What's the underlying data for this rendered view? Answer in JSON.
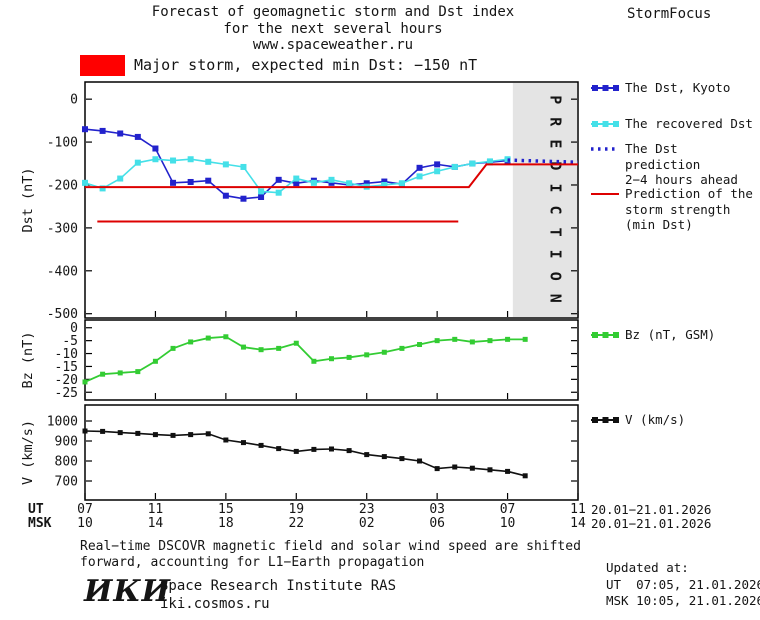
{
  "header": {
    "title_line1": "Forecast of geomagnetic storm and Dst index",
    "title_line2": "for the next several hours",
    "title_line3": "www.spaceweather.ru",
    "brand": "StormFocus"
  },
  "warning": {
    "box_color": "#ff0000",
    "label": "Major storm, expected min Dst: −150 nT"
  },
  "legend": {
    "dst_kyoto": "The Dst, Kyoto",
    "recovered": "The recovered Dst",
    "prediction_line1": "The Dst prediction",
    "prediction_line2": "2−4 hours ahead",
    "strength_line1": "Prediction of the",
    "strength_line2": "storm strength",
    "strength_line3": "(min Dst)",
    "bz": "Bz (nT, GSM)",
    "v": "V (km/s)"
  },
  "axes": {
    "dst_label": "Dst (nT)",
    "bz_label": "Bz (nT)",
    "v_label": "V (km/s)",
    "ut_label": "UT",
    "msk_label": "MSK",
    "ut_ticks": [
      "07",
      "11",
      "15",
      "19",
      "23",
      "03",
      "07",
      "11"
    ],
    "msk_ticks": [
      "10",
      "14",
      "18",
      "22",
      "02",
      "06",
      "10",
      "14"
    ],
    "ut_date_range": "20.01−21.01.2026",
    "msk_date_range": "20.01−21.01.2026"
  },
  "footer": {
    "note_line1": "Real−time DSCOVR magnetic field and solar wind speed are shifted",
    "note_line2": "forward, accounting for L1−Earth propagation",
    "logo": "ИКИ",
    "institute": "Space Research Institute RAS",
    "site": "iki.cosmos.ru",
    "updated_title": "Updated at:",
    "updated_ut": "UT  07:05, 21.01.2026",
    "updated_msk": "MSK 10:05, 21.01.2026"
  },
  "chart_data": [
    {
      "type": "line",
      "ylabel": "Dst (nT)",
      "xlim": [
        7,
        35
      ],
      "ylim": [
        -510,
        40
      ],
      "yticks": [
        0,
        -100,
        -200,
        -300,
        -400,
        -500
      ],
      "xtick_hours": [
        7,
        11,
        15,
        19,
        23,
        27,
        31,
        35
      ],
      "prediction_band": {
        "start_hour": 31.3,
        "label": "PREDICTION",
        "fill": "#e4e4e4",
        "text_color": "#a6a6a6"
      },
      "series": [
        {
          "name": "The Dst, Kyoto",
          "color": "#2222cc",
          "marker": "square",
          "marker_size": 6,
          "width": 1.6,
          "x": [
            7,
            8,
            9,
            10,
            11,
            12,
            13,
            14,
            15,
            16,
            17,
            18,
            19,
            20,
            21,
            22,
            23,
            24,
            25,
            26,
            27,
            28,
            29,
            30,
            31
          ],
          "y": [
            -70,
            -74,
            -80,
            -88,
            -115,
            -195,
            -193,
            -190,
            -225,
            -232,
            -228,
            -188,
            -196,
            -190,
            -195,
            -200,
            -196,
            -192,
            -198,
            -160,
            -152,
            -158,
            -150,
            -147,
            -143
          ]
        },
        {
          "name": "The recovered Dst",
          "color": "#45e0e8",
          "marker": "square",
          "marker_size": 6,
          "width": 1.6,
          "x": [
            7,
            8,
            9,
            10,
            11,
            12,
            13,
            14,
            15,
            16,
            17,
            18,
            19,
            20,
            21,
            22,
            23,
            24,
            25,
            26,
            27,
            28,
            29,
            30,
            31
          ],
          "y": [
            -195,
            -208,
            -185,
            -148,
            -140,
            -143,
            -140,
            -146,
            -152,
            -158,
            -215,
            -218,
            -185,
            -195,
            -188,
            -196,
            -204,
            -200,
            -196,
            -180,
            -168,
            -158,
            -150,
            -145,
            -140
          ]
        },
        {
          "name": "The Dst prediction 2−4 hours ahead",
          "color": "#2222cc",
          "dash": "2.5 4.5",
          "width": 3.5,
          "x": [
            31,
            31.8,
            32.6,
            33.4,
            34.2,
            35
          ],
          "y": [
            -142,
            -143,
            -144,
            -145,
            -146,
            -147
          ]
        },
        {
          "name": "Prediction of the storm strength (min Dst)",
          "color": "#dd0000",
          "width": 2,
          "x": [
            7,
            28.8,
            29.8,
            35
          ],
          "y": [
            -205,
            -205,
            -152,
            -152
          ]
        },
        {
          "name": "Prediction of the storm strength (earlier)",
          "color": "#dd0000",
          "width": 2,
          "x": [
            7.7,
            28.2
          ],
          "y": [
            -285,
            -285
          ]
        }
      ]
    },
    {
      "type": "line",
      "ylabel": "Bz (nT)",
      "xlim": [
        7,
        35
      ],
      "ylim": [
        -28,
        3
      ],
      "yticks": [
        0,
        -5,
        -10,
        -15,
        -20,
        -25
      ],
      "series": [
        {
          "name": "Bz (nT, GSM)",
          "color": "#33cc33",
          "marker": "square",
          "marker_size": 5,
          "width": 1.8,
          "x": [
            7,
            8,
            9,
            10,
            11,
            12,
            13,
            14,
            15,
            16,
            17,
            18,
            19,
            20,
            21,
            22,
            23,
            24,
            25,
            26,
            27,
            28,
            29,
            30,
            31,
            32
          ],
          "y": [
            -21,
            -18,
            -17.5,
            -17,
            -13,
            -8,
            -5.5,
            -4,
            -3.5,
            -7.5,
            -8.5,
            -8,
            -6,
            -13,
            -12,
            -11.5,
            -10.5,
            -9.5,
            -8,
            -6.5,
            -5,
            -4.5,
            -5.5,
            -5,
            -4.5,
            -4.5
          ]
        }
      ]
    },
    {
      "type": "line",
      "ylabel": "V (km/s)",
      "xlim": [
        7,
        35
      ],
      "ylim": [
        605,
        1080
      ],
      "yticks": [
        1000,
        900,
        800,
        700
      ],
      "series": [
        {
          "name": "V (km/s)",
          "color": "#111111",
          "marker": "square",
          "marker_size": 5,
          "width": 1.6,
          "x": [
            7,
            8,
            9,
            10,
            11,
            12,
            13,
            14,
            15,
            16,
            17,
            18,
            19,
            20,
            21,
            22,
            23,
            24,
            25,
            26,
            27,
            28,
            29,
            30,
            31,
            32
          ],
          "y": [
            950,
            948,
            942,
            938,
            932,
            928,
            932,
            936,
            905,
            892,
            878,
            862,
            848,
            858,
            860,
            852,
            832,
            822,
            812,
            800,
            762,
            770,
            764,
            756,
            748,
            726
          ]
        }
      ]
    }
  ]
}
